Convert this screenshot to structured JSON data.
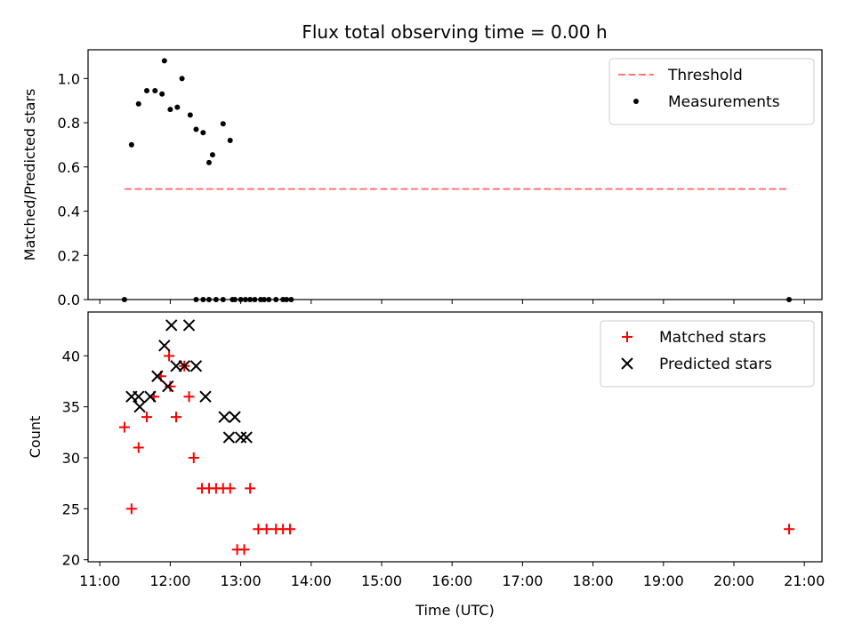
{
  "chart_data": [
    {
      "type": "scatter",
      "title": "Flux total observing time = 0.00 h",
      "xlabel": "",
      "ylabel": "Matched/Predicted stars",
      "xlim": [
        "10:50",
        "21:15"
      ],
      "ylim": [
        0,
        1.13
      ],
      "yticks": [
        "0.0",
        "0.2",
        "0.4",
        "0.6",
        "0.8",
        "1.0"
      ],
      "xticks": [
        "11:00",
        "12:00",
        "13:00",
        "14:00",
        "15:00",
        "16:00",
        "17:00",
        "18:00",
        "19:00",
        "20:00",
        "21:00"
      ],
      "show_xtick_labels": false,
      "grid": false,
      "legend_position": "upper right",
      "threshold": {
        "name": "Threshold",
        "value": 0.5,
        "x_start": "11:21",
        "x_end": "20:47",
        "color": "#ff7777",
        "style": "dashed"
      },
      "series": [
        {
          "name": "Measurements",
          "marker": "dot",
          "color": "#000000",
          "x": [
            "11:27",
            "11:33",
            "11:40",
            "11:47",
            "11:53",
            "11:55",
            "12:00",
            "12:06",
            "12:10",
            "12:17",
            "12:22",
            "12:28",
            "12:33",
            "12:36",
            "12:45",
            "12:51",
            "12:53",
            "13:04",
            "13:17",
            "13:24",
            "13:39",
            "13:43",
            "11:21",
            "12:22",
            "12:28",
            "12:33",
            "12:39",
            "12:45",
            "12:55",
            "13:00",
            "13:08",
            "13:12",
            "13:20",
            "13:30",
            "13:36",
            "20:47"
          ],
          "values": [
            0.7,
            0.885,
            0.945,
            0.945,
            0.93,
            1.08,
            0.86,
            0.87,
            1.0,
            0.835,
            0.77,
            0.755,
            0.62,
            0.655,
            0.795,
            0.72,
            0.0,
            0.0,
            0.0,
            0.0,
            0.0,
            0.0,
            0.0,
            0.0,
            0.0,
            0.0,
            0.0,
            0.0,
            0.0,
            0.0,
            0.0,
            0.0,
            0.0,
            0.0,
            0.0,
            0.0
          ]
        }
      ]
    },
    {
      "type": "scatter",
      "title": "",
      "xlabel": "Time (UTC)",
      "ylabel": "Count",
      "xlim": [
        "10:50",
        "21:15"
      ],
      "ylim": [
        19.8,
        44.3
      ],
      "yticks": [
        "20",
        "25",
        "30",
        "35",
        "40"
      ],
      "xticks": [
        "11:00",
        "12:00",
        "13:00",
        "14:00",
        "15:00",
        "16:00",
        "17:00",
        "18:00",
        "19:00",
        "20:00",
        "21:00"
      ],
      "grid": false,
      "legend_position": "upper right",
      "series": [
        {
          "name": "Matched stars",
          "marker": "plus",
          "color": "#ff0000",
          "x": [
            "11:21",
            "11:27",
            "11:33",
            "11:40",
            "11:46",
            "11:52",
            "11:59",
            "12:00",
            "12:05",
            "12:12",
            "12:16",
            "12:20",
            "12:27",
            "12:33",
            "12:39",
            "12:45",
            "12:51",
            "12:57",
            "13:03",
            "13:08",
            "13:15",
            "13:22",
            "13:30",
            "13:36",
            "13:42",
            "20:47"
          ],
          "values": [
            33,
            25,
            31,
            34,
            36,
            38,
            40,
            37,
            34,
            39,
            36,
            30,
            27,
            27,
            27,
            27,
            27,
            21,
            21,
            27,
            23,
            23,
            23,
            23,
            23,
            23
          ]
        },
        {
          "name": "Predicted stars",
          "marker": "x",
          "color": "#000000",
          "x": [
            "11:27",
            "11:33",
            "11:34",
            "11:43",
            "11:49",
            "11:55",
            "11:58",
            "12:01",
            "12:05",
            "12:12",
            "12:16",
            "12:22",
            "12:30",
            "12:46",
            "12:50",
            "12:55",
            "13:00",
            "13:05"
          ],
          "values": [
            36,
            36,
            35,
            36,
            38,
            41,
            37,
            43,
            39,
            39,
            43,
            39,
            36,
            34,
            32,
            34,
            32,
            32
          ]
        }
      ]
    }
  ]
}
